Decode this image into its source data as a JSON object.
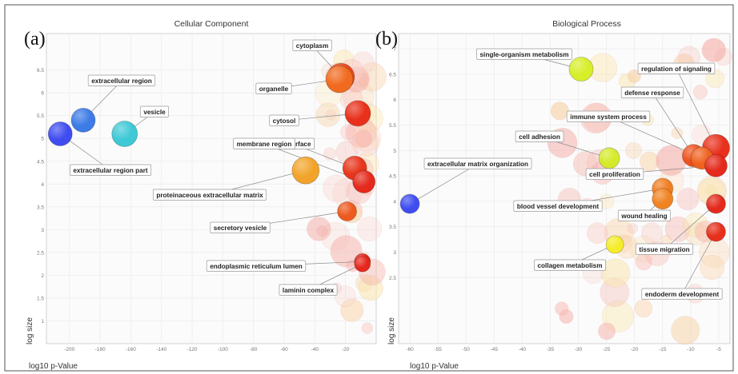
{
  "panels": [
    {
      "letter": "(a)",
      "title": "Cellular Component",
      "xlabel": "log10 p-Value",
      "ylabel": "log size",
      "chart_data": {
        "type": "scatter",
        "xlim": [
          -215,
          0
        ],
        "ylim": [
          0.5,
          7.3
        ],
        "xticks": [
          -200,
          -180,
          -160,
          -140,
          -120,
          -100,
          -80,
          -60,
          -40,
          -20
        ],
        "yticks": [
          1,
          1.5,
          2,
          2.5,
          3,
          3.5,
          4,
          4.5,
          5,
          5.5,
          6,
          6.5
        ],
        "xtick_labels": [
          "-200",
          "-180",
          "-160",
          "-140",
          "-120",
          "-100",
          "-80",
          "-60",
          "-40",
          "-20"
        ],
        "ytick_labels": [
          "1",
          "1.5",
          "2",
          "2.5",
          "3",
          "3.5",
          "4",
          "4.5",
          "5",
          "5.5",
          "6",
          "6.5"
        ],
        "labeled_points": [
          {
            "label": "extracellular region part",
            "x": -206,
            "y": 5.1,
            "color": "#3f4df0"
          },
          {
            "label": "extracellular region",
            "x": -191,
            "y": 5.4,
            "color": "#3d7be6"
          },
          {
            "label": "vesicle",
            "x": -164,
            "y": 5.1,
            "color": "#3ec9d6"
          },
          {
            "label": "cytoplasm",
            "x": -23,
            "y": 6.35,
            "color": "#ea4a1e"
          },
          {
            "label": "organelle",
            "x": -24,
            "y": 6.3,
            "color": "#f06a1f"
          },
          {
            "label": "cytosol",
            "x": -12,
            "y": 5.55,
            "color": "#e8301c"
          },
          {
            "label": "cell surface",
            "x": -14,
            "y": 4.35,
            "color": "#e8361c"
          },
          {
            "label": "membrane region",
            "x": -8,
            "y": 4.05,
            "color": "#e42a1c"
          },
          {
            "label": "proteinaceous extracellular matrix",
            "x": -46,
            "y": 4.3,
            "color": "#f2a42a"
          },
          {
            "label": "secretory vesicle",
            "x": -19,
            "y": 3.4,
            "color": "#ed5a1f"
          },
          {
            "label": "endoplasmic reticulum lumen",
            "x": -9,
            "y": 2.3,
            "color": "#e6281c"
          },
          {
            "label": "laminin complex",
            "x": -9,
            "y": 2.25,
            "color": "#e6281c"
          }
        ]
      }
    },
    {
      "letter": "(b)",
      "title": "Biological Process",
      "xlabel": "log10 p-Value",
      "ylabel": "log size",
      "chart_data": {
        "type": "scatter",
        "xlim": [
          -62,
          -3
        ],
        "ylim": [
          1.2,
          7.3
        ],
        "xticks": [
          -60,
          -55,
          -50,
          -45,
          -40,
          -35,
          -30,
          -25,
          -20,
          -15,
          -10,
          -5
        ],
        "yticks": [
          2.5,
          3,
          3.5,
          4,
          4.5,
          5,
          5.5,
          6,
          6.5,
          7
        ],
        "xtick_labels": [
          "-60",
          "-55",
          "-50",
          "-45",
          "-40",
          "-35",
          "-30",
          "-25",
          "-20",
          "-15",
          "-10",
          "-5"
        ],
        "ytick_labels": [
          "2.5",
          "3",
          "3.5",
          "4",
          "4.5",
          "5",
          "5.5",
          "6",
          "6.5",
          "7"
        ],
        "labeled_points": [
          {
            "label": "single-organism metabolism",
            "x": -29.5,
            "y": 6.6,
            "color": "#d7ee2a"
          },
          {
            "label": "regulation of signaling",
            "x": -5.5,
            "y": 5.05,
            "color": "#e8301c"
          },
          {
            "label": "defense response",
            "x": -9.5,
            "y": 4.9,
            "color": "#ee521e"
          },
          {
            "label": "immune system process",
            "x": -8,
            "y": 4.85,
            "color": "#ef621f"
          },
          {
            "label": "cell adhesion",
            "x": -24.5,
            "y": 4.85,
            "color": "#d4ea2a"
          },
          {
            "label": "cell proliferation",
            "x": -5.5,
            "y": 4.7,
            "color": "#e42a1c"
          },
          {
            "label": "extracellular matrix organization",
            "x": -60,
            "y": 3.95,
            "color": "#3f4df0"
          },
          {
            "label": "blood vessel development",
            "x": -15,
            "y": 4.25,
            "color": "#f07e22"
          },
          {
            "label": "wound healing",
            "x": -15,
            "y": 4.05,
            "color": "#f08322"
          },
          {
            "label": "tissue migration",
            "x": -5.5,
            "y": 3.95,
            "color": "#e42a1c"
          },
          {
            "label": "collagen metabolism",
            "x": -23.5,
            "y": 3.15,
            "color": "#f5ec2a"
          },
          {
            "label": "endoderm development",
            "x": -5.5,
            "y": 3.4,
            "color": "#e6301c"
          }
        ]
      }
    }
  ]
}
